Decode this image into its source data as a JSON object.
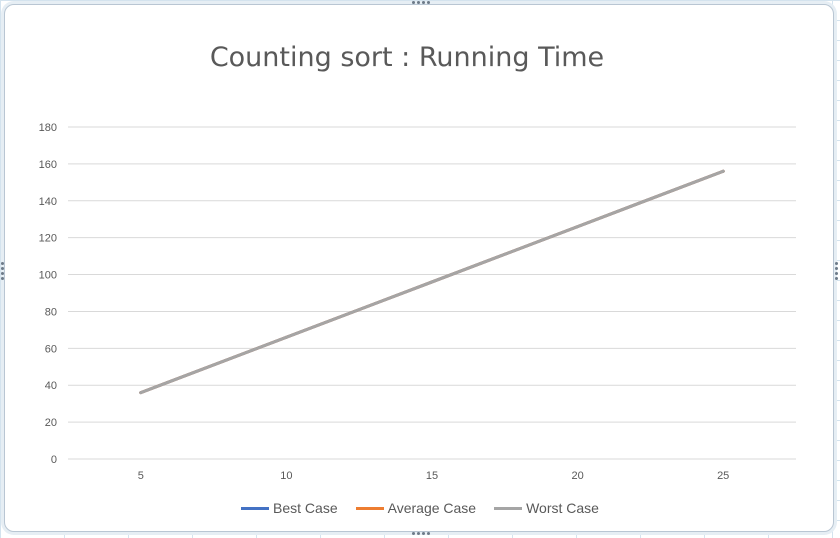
{
  "chart_data": {
    "type": "line",
    "title": "Counting sort : Running Time",
    "xlabel": "",
    "ylabel": "",
    "categories": [
      "5",
      "10",
      "15",
      "20",
      "25"
    ],
    "x": [
      5,
      10,
      15,
      20,
      25
    ],
    "ylim": [
      0,
      180
    ],
    "yticks": [
      "0",
      "20",
      "40",
      "60",
      "80",
      "100",
      "120",
      "140",
      "160",
      "180"
    ],
    "grid": "horizontal",
    "legend_position": "bottom",
    "series": [
      {
        "name": "Best Case",
        "color": "#4472c4",
        "values": [
          36,
          66,
          96,
          126,
          156
        ]
      },
      {
        "name": "Average Case",
        "color": "#ed7d31",
        "values": [
          36,
          66,
          96,
          126,
          156
        ]
      },
      {
        "name": "Worst Case",
        "color": "#a5a5a5",
        "values": [
          36,
          66,
          96,
          126,
          156
        ]
      }
    ]
  }
}
